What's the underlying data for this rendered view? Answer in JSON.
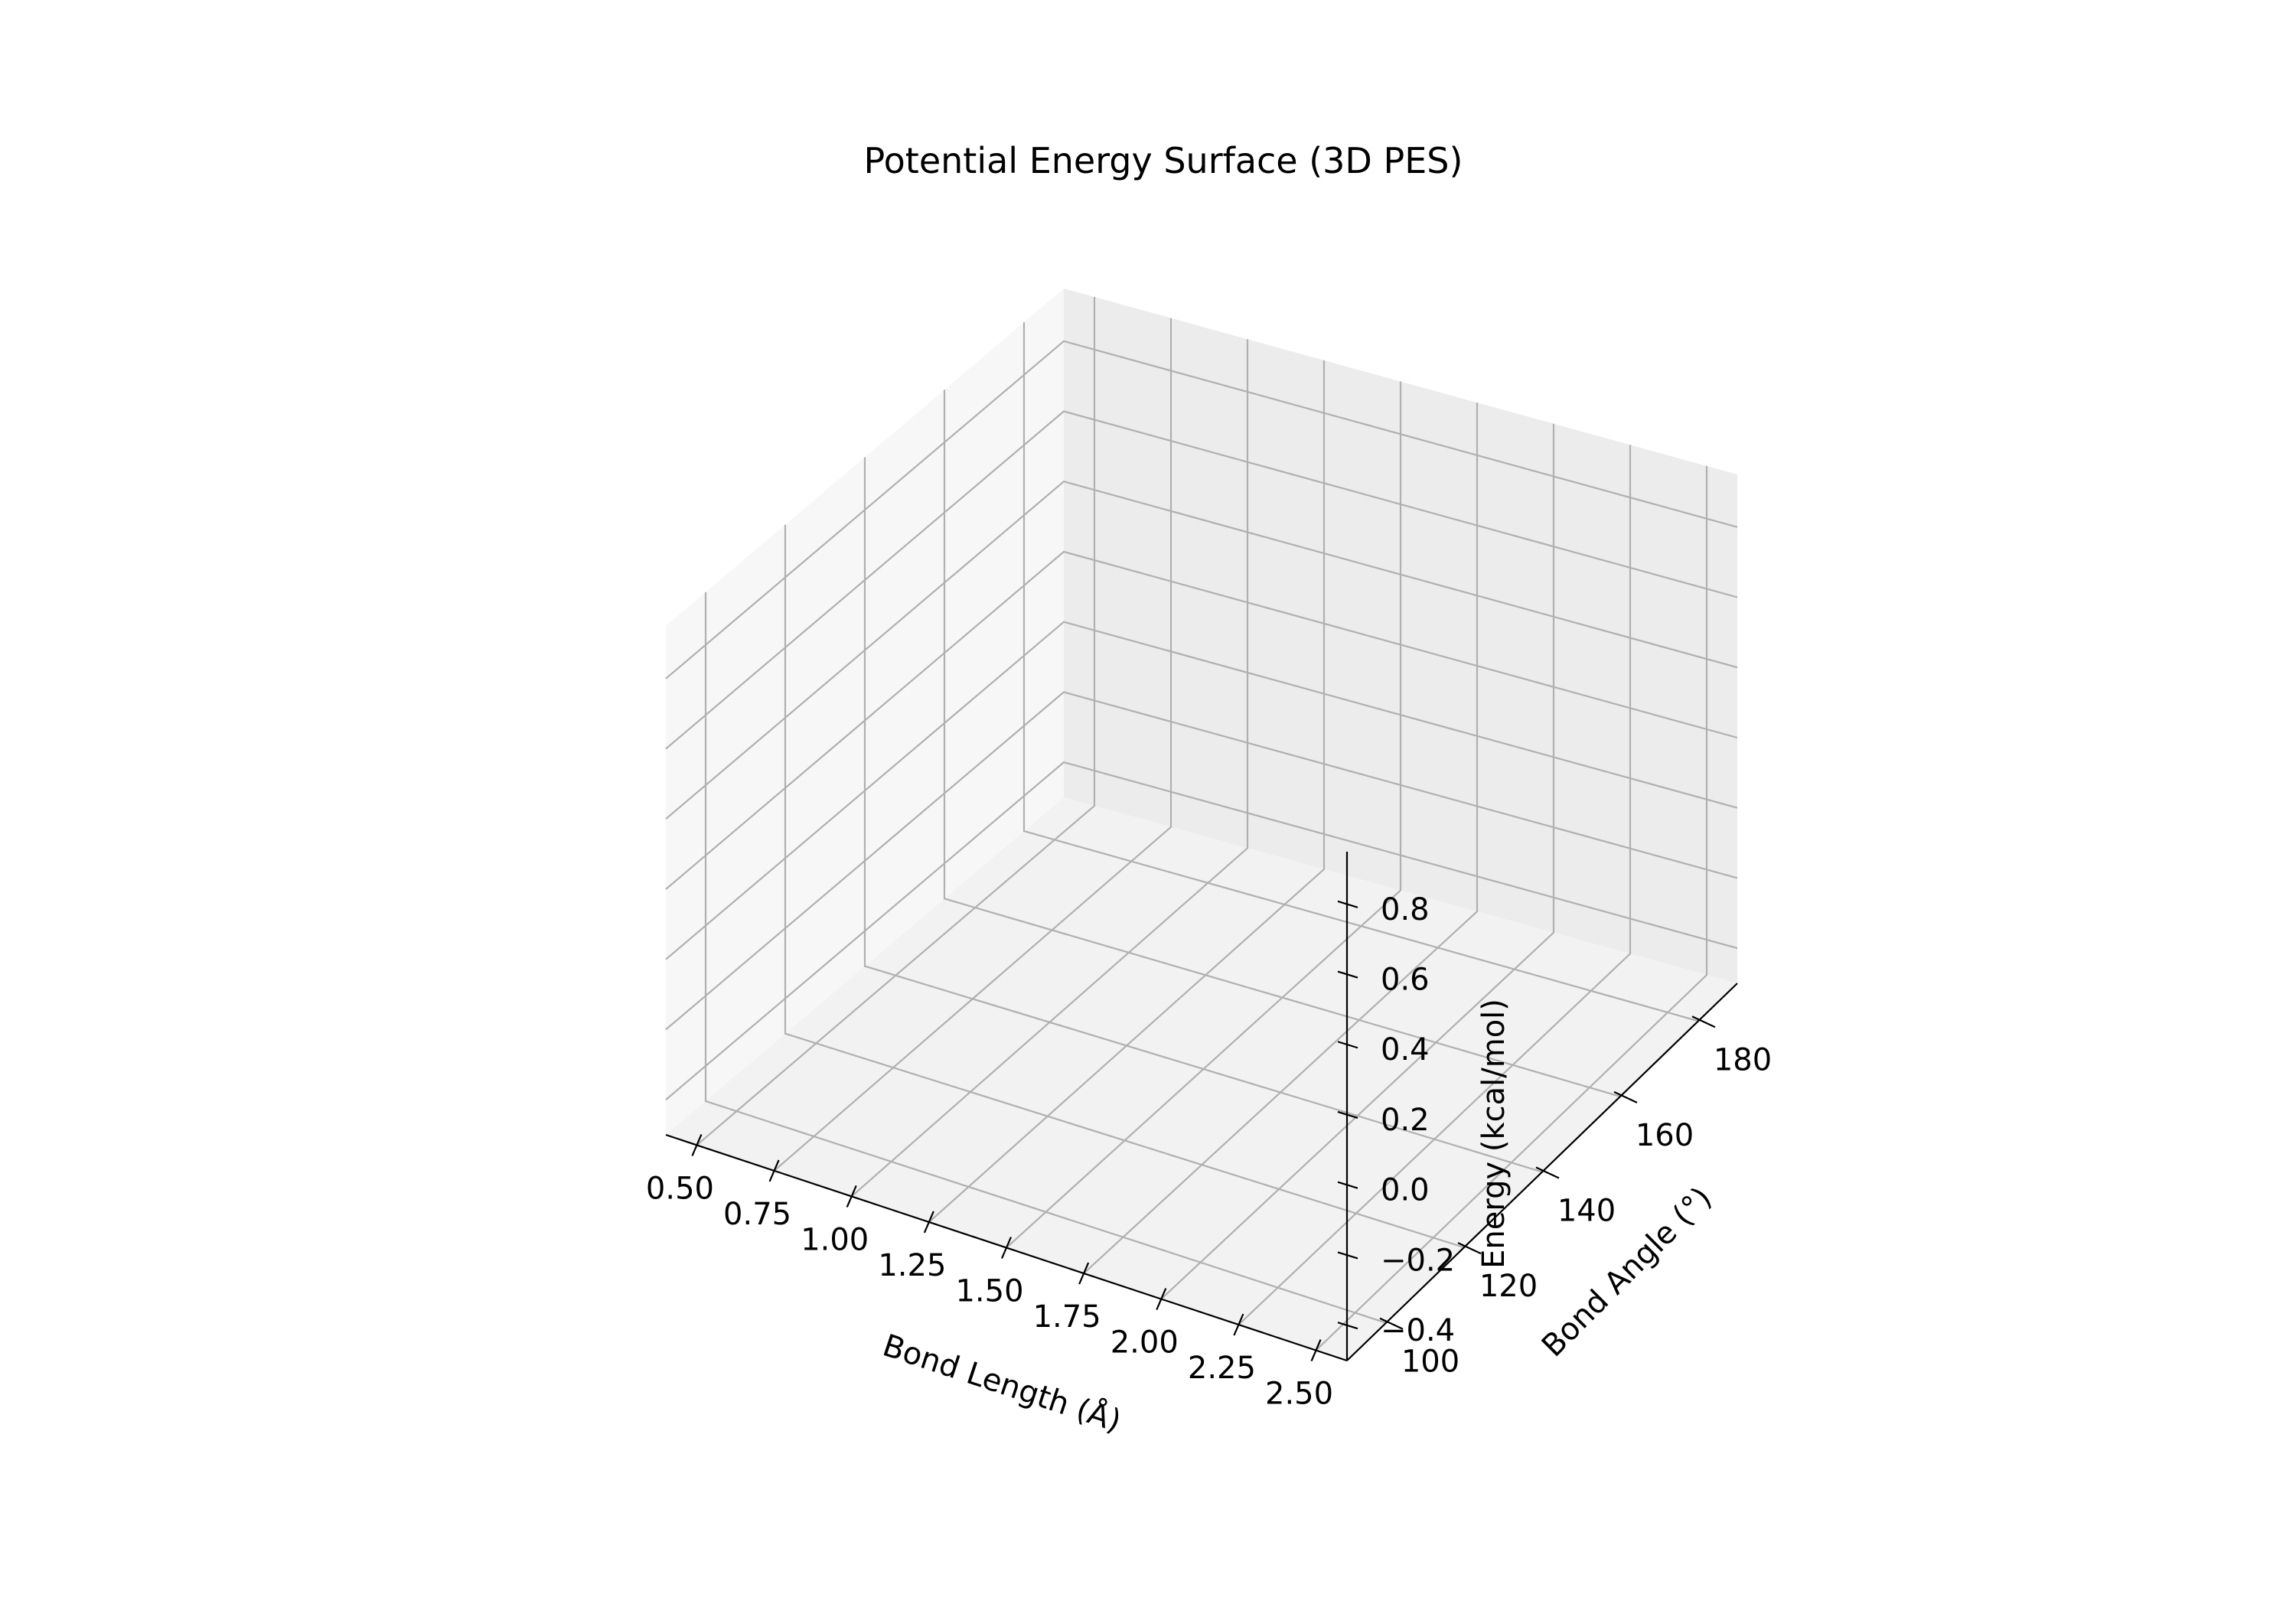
{
  "chart_data": {
    "type": "surface",
    "title": "Potential Energy Surface (3D PES)",
    "x_axis": {
      "label": "Bond Length (Å)",
      "ticks": [
        0.5,
        0.75,
        1.0,
        1.25,
        1.5,
        1.75,
        2.0,
        2.25,
        2.5
      ],
      "tick_labels": [
        "0.50",
        "0.75",
        "1.00",
        "1.25",
        "1.50",
        "1.75",
        "2.00",
        "2.25",
        "2.50"
      ],
      "range": [
        0.4,
        2.6
      ]
    },
    "y_axis": {
      "label": "Bond Angle (°)",
      "ticks": [
        100,
        120,
        140,
        160,
        180
      ],
      "tick_labels": [
        "100",
        "120",
        "140",
        "160",
        "180"
      ],
      "range": [
        90,
        190
      ]
    },
    "z_axis": {
      "label": "Energy (kcal/mol)",
      "ticks": [
        -0.4,
        -0.2,
        0.0,
        0.2,
        0.4,
        0.6,
        0.8
      ],
      "tick_labels": [
        "−0.4",
        "−0.2",
        "0.0",
        "0.2",
        "0.4",
        "0.6",
        "0.8"
      ],
      "range": [
        -0.5,
        0.95
      ]
    },
    "series": [],
    "grid": true,
    "pane_colors": {
      "floor": "#f2f2f2",
      "left_wall": "#f7f7f7",
      "back_wall": "#ececec"
    }
  }
}
